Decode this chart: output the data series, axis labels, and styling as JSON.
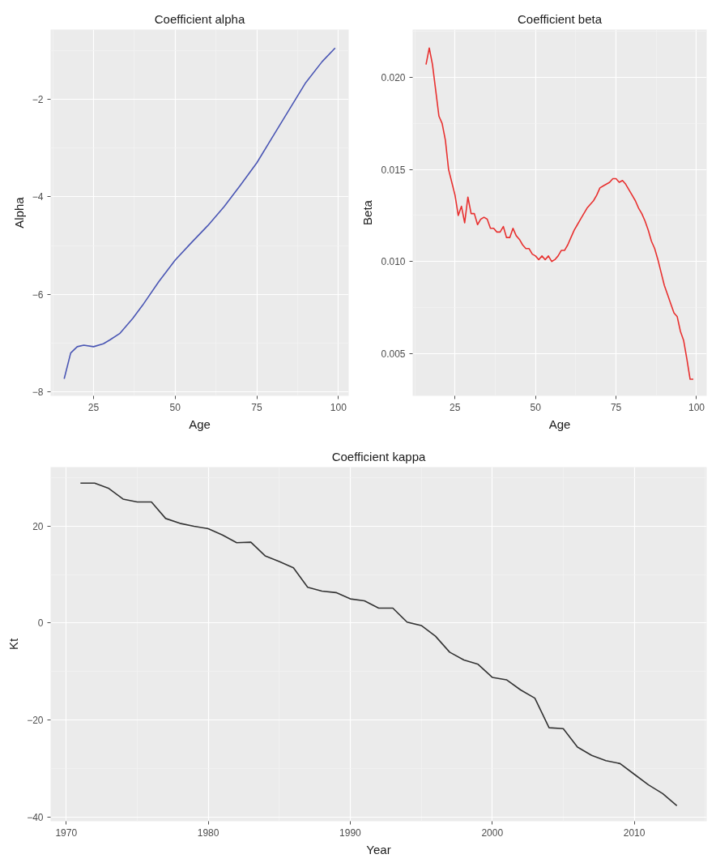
{
  "chart_data": [
    {
      "type": "line",
      "title": "Coefficient alpha",
      "xlabel": "Age",
      "ylabel": "Alpha",
      "grid": true,
      "xlim": [
        11.85,
        103.15
      ],
      "ylim": [
        -8.09,
        -0.56
      ],
      "xticks": [
        25,
        50,
        75,
        100
      ],
      "yticks": [
        -8,
        -6,
        -4,
        -2
      ],
      "series": [
        {
          "color": "#4a56b4",
          "x": [
            16,
            18,
            20,
            22,
            25,
            28,
            30,
            33,
            37,
            40,
            45,
            50,
            55,
            60,
            65,
            70,
            75,
            80,
            85,
            90,
            95,
            99
          ],
          "values": [
            -7.74,
            -7.21,
            -7.08,
            -7.05,
            -7.08,
            -7.02,
            -6.94,
            -6.81,
            -6.5,
            -6.23,
            -5.74,
            -5.3,
            -4.94,
            -4.59,
            -4.2,
            -3.76,
            -3.3,
            -2.75,
            -2.2,
            -1.65,
            -1.22,
            -0.94
          ]
        }
      ]
    },
    {
      "type": "line",
      "title": "Coefficient beta",
      "xlabel": "Age",
      "ylabel": "Beta",
      "grid": true,
      "xlim": [
        11.85,
        103.15
      ],
      "ylim": [
        0.0027,
        0.0226
      ],
      "xticks": [
        25,
        50,
        75,
        100
      ],
      "yticks": [
        {
          "value": 0.005,
          "label": "0.005"
        },
        {
          "value": 0.01,
          "label": "0.010"
        },
        {
          "value": 0.015,
          "label": "0.015"
        },
        {
          "value": 0.02,
          "label": "0.020"
        }
      ],
      "series": [
        {
          "color": "#e8302f",
          "x": [
            16,
            17,
            18,
            19,
            20,
            21,
            22,
            23,
            24,
            25,
            26,
            27,
            28,
            29,
            30,
            31,
            32,
            33,
            34,
            35,
            36,
            37,
            38,
            39,
            40,
            41,
            42,
            43,
            44,
            45,
            46,
            47,
            48,
            49,
            50,
            51,
            52,
            53,
            54,
            55,
            56,
            57,
            58,
            59,
            60,
            61,
            62,
            63,
            64,
            65,
            66,
            67,
            68,
            69,
            70,
            71,
            72,
            73,
            74,
            75,
            76,
            77,
            78,
            79,
            80,
            81,
            82,
            83,
            84,
            85,
            86,
            87,
            88,
            89,
            90,
            91,
            92,
            93,
            94,
            95,
            96,
            97,
            98,
            99
          ],
          "values": [
            0.0207,
            0.0216,
            0.0207,
            0.0193,
            0.0179,
            0.0175,
            0.0166,
            0.015,
            0.0143,
            0.0136,
            0.0125,
            0.013,
            0.0121,
            0.0135,
            0.0126,
            0.0126,
            0.012,
            0.0123,
            0.0124,
            0.0123,
            0.0118,
            0.0118,
            0.0116,
            0.0116,
            0.0119,
            0.0113,
            0.0113,
            0.0118,
            0.0114,
            0.0112,
            0.0109,
            0.0107,
            0.0107,
            0.0104,
            0.0103,
            0.0101,
            0.0103,
            0.0101,
            0.0103,
            0.01,
            0.0101,
            0.0103,
            0.0106,
            0.0106,
            0.0109,
            0.0113,
            0.0117,
            0.012,
            0.0123,
            0.0126,
            0.0129,
            0.0131,
            0.0133,
            0.0136,
            0.014,
            0.0141,
            0.0142,
            0.0143,
            0.0145,
            0.0145,
            0.0143,
            0.0144,
            0.0142,
            0.0139,
            0.0136,
            0.0133,
            0.0129,
            0.0126,
            0.0122,
            0.0117,
            0.0111,
            0.0107,
            0.0101,
            0.0094,
            0.0087,
            0.0082,
            0.0077,
            0.0072,
            0.007,
            0.0062,
            0.0057,
            0.0047,
            0.0036,
            0.0036
          ]
        }
      ]
    },
    {
      "type": "line",
      "title": "Coefficient kappa",
      "xlabel": "Year",
      "ylabel": "Kt",
      "grid": true,
      "xlim": [
        1968.9,
        2015.1
      ],
      "ylim": [
        -40.9,
        32.2
      ],
      "xticks": [
        1970,
        1980,
        1990,
        2000,
        2010
      ],
      "yticks": [
        -40,
        -20,
        0,
        20
      ],
      "series": [
        {
          "color": "#333333",
          "x": [
            1971,
            1972,
            1973,
            1974,
            1975,
            1976,
            1977,
            1978,
            1979,
            1980,
            1981,
            1982,
            1983,
            1984,
            1985,
            1986,
            1987,
            1988,
            1989,
            1990,
            1991,
            1992,
            1993,
            1994,
            1995,
            1996,
            1997,
            1998,
            1999,
            2000,
            2001,
            2002,
            2003,
            2004,
            2005,
            2006,
            2007,
            2008,
            2009,
            2010,
            2011,
            2012,
            2013
          ],
          "values": [
            28.9,
            28.9,
            27.8,
            25.6,
            25.0,
            25.0,
            21.6,
            20.6,
            20.0,
            19.5,
            18.2,
            16.6,
            16.7,
            13.9,
            12.7,
            11.4,
            7.4,
            6.6,
            6.3,
            5.0,
            4.6,
            3.1,
            3.1,
            0.2,
            -0.5,
            -2.7,
            -6.0,
            -7.6,
            -8.5,
            -11.2,
            -11.7,
            -13.8,
            -15.5,
            -21.6,
            -21.8,
            -25.6,
            -27.3,
            -28.4,
            -29.0,
            -31.2,
            -33.4,
            -35.2,
            -37.7
          ]
        }
      ]
    }
  ]
}
